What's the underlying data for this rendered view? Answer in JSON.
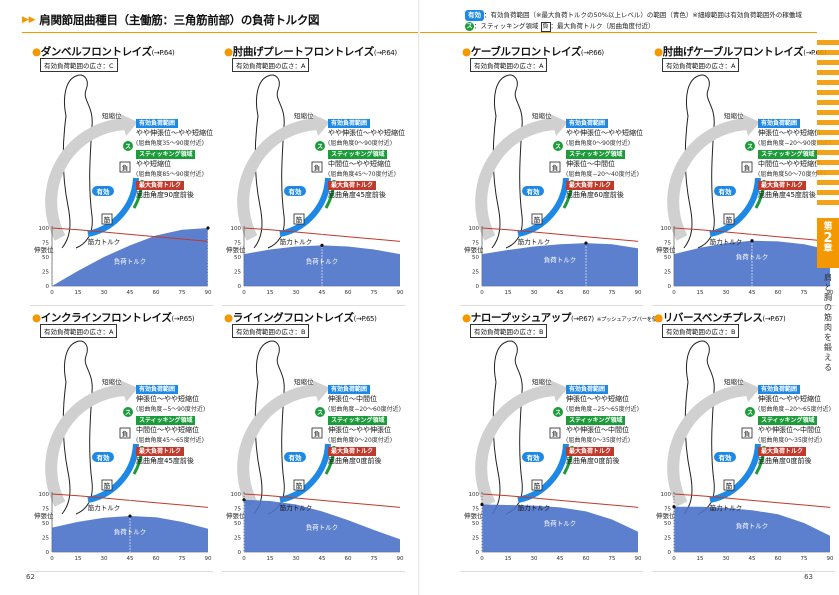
{
  "header": {
    "title": "肩関節屈曲種目（主働筋：三角筋前部）の負荷トルク図"
  },
  "legend": {
    "line1_tag": "有効",
    "line1_text": "：有効負荷範囲（※最大負荷トルクの50%以上レベル）の範囲（青色）※細線範囲は有効負荷範囲外の稼働域",
    "line2_s": "ス",
    "line2_text": "：スティッキング領域",
    "line2_box": "負",
    "line2_text2": "：最大負荷トルク（屈曲角度付近）"
  },
  "colors": {
    "accent": "#f39800",
    "blue": "#1e88e5",
    "green": "#1b9b3a",
    "red": "#c0392b",
    "torque_fill": "#4a72c8"
  },
  "common": {
    "long_pos": "短縮位",
    "stretch_pos": "伸張位",
    "muscle": "筋",
    "load": "負",
    "effective": "有効",
    "sticking": "ス",
    "lab_effective": "有効負荷範囲",
    "lab_sticking": "スティッキング領域",
    "lab_max": "最大負荷トルク",
    "muscle_torque": "筋力トルク",
    "load_torque": "負荷トルク"
  },
  "left_page": {
    "page_number": "62",
    "axis_note": "(伸張位) ←肩関節屈曲角度（度）→ (短縮位)",
    "bottom_top": "ボトム ⟷ トップ",
    "y_axis_label": "筋トルク・負荷トルク(%)",
    "panels": [
      {
        "title": "ダンベルフロントレイズ",
        "ref": "(→P.64)",
        "range": "有効負荷範囲の広さ：C",
        "effective": "やや伸張位〜やや短縮位",
        "effective_sub": "(屈曲角度35〜90度付近)",
        "sticking": "やや短縮位",
        "sticking_sub": "(屈曲角度85〜90度付近)",
        "max": "屈曲角度90度前後"
      },
      {
        "title": "肘曲げプレートフロントレイズ",
        "ref": "(→P.64)",
        "range": "有効負荷範囲の広さ：A",
        "effective": "やや伸張位〜やや短縮位",
        "effective_sub": "(屈曲角度0〜90度付近)",
        "sticking": "中間位〜やや短縮位",
        "sticking_sub": "(屈曲角度45〜70度付近)",
        "max": "屈曲角度45度前後"
      },
      {
        "title": "インクラインフロントレイズ",
        "ref": "(→P.65)",
        "range": "有効負荷範囲の広さ：A",
        "effective": "伸張位〜やや短縮位",
        "effective_sub": "(屈曲角度−5〜90度付近)",
        "sticking": "中間位〜やや短縮位",
        "sticking_sub": "(屈曲角度45〜65度付近)",
        "max": "屈曲角度45度前後"
      },
      {
        "title": "ライイングフロントレイズ",
        "ref": "(→P.65)",
        "range": "有効負荷範囲の広さ：B",
        "effective": "伸張位〜中間位",
        "effective_sub": "(屈曲角度−20〜60度付近)",
        "sticking": "伸張位〜やや伸張位",
        "sticking_sub": "(屈曲角度0〜20度付近)",
        "max": "屈曲角度0度前後"
      }
    ]
  },
  "right_page": {
    "page_number": "63",
    "chapter_label": "第",
    "chapter_num": "2",
    "chapter_suffix": "章",
    "side_text": "肩と胸の筋肉を鍛える",
    "panels": [
      {
        "title": "ケーブルフロントレイズ",
        "ref": "(→P.66)",
        "range": "有効負荷範囲の広さ：A",
        "effective": "やや伸張位〜やや短縮位",
        "effective_sub": "(屈曲角度0〜90度付近)",
        "sticking": "伸張位〜中間位",
        "sticking_sub": "(屈曲角度−20〜40度付近)",
        "max": "屈曲角度60度前後"
      },
      {
        "title": "肘曲げケーブルフロントレイズ",
        "ref": "(→P.66)",
        "range": "有効負荷範囲の広さ：A",
        "effective": "伸張位〜やや短縮位",
        "effective_sub": "(屈曲角度−20〜90度付近)",
        "sticking": "中間位〜やや短縮位",
        "sticking_sub": "(屈曲角度50〜70度付近)",
        "max": "屈曲角度45度前後"
      },
      {
        "title": "ナロープッシュアップ",
        "ref": "(→P.67)",
        "subnote": "※プッシュアップバーを使用",
        "range": "有効負荷範囲の広さ：B",
        "effective": "伸張位〜やや短縮位",
        "effective_sub": "(屈曲角度−25〜65度付近)",
        "sticking": "やや伸張位〜中間位",
        "sticking_sub": "(屈曲角度0〜35度付近)",
        "max": "屈曲角度0度前後"
      },
      {
        "title": "リバースベンチプレス",
        "ref": "(→P.67)",
        "range": "有効負荷範囲の広さ：B",
        "effective": "伸張位〜やや短縮位",
        "effective_sub": "(屈曲角度−20〜65度付近)",
        "sticking": "やや伸張位〜中間位",
        "sticking_sub": "(屈曲角度0〜35度付近)",
        "max": "屈曲角度0度前後"
      }
    ]
  },
  "chart_data": [
    {
      "type": "line",
      "panel": "ダンベルフロントレイズ",
      "x": [
        0,
        15,
        30,
        45,
        60,
        75,
        90
      ],
      "series": [
        {
          "name": "筋力トルク",
          "values": [
            100,
            97,
            93,
            89,
            85,
            81,
            77
          ]
        },
        {
          "name": "負荷トルク",
          "values": [
            0,
            26,
            50,
            70,
            87,
            97,
            100
          ]
        }
      ],
      "ylim": [
        0,
        100
      ],
      "yticks": [
        0,
        25,
        50,
        75,
        100
      ],
      "max_load_x": 90
    },
    {
      "type": "line",
      "panel": "肘曲げプレートフロントレイズ",
      "x": [
        0,
        15,
        30,
        45,
        60,
        75,
        90
      ],
      "series": [
        {
          "name": "筋力トルク",
          "values": [
            100,
            97,
            93,
            89,
            85,
            81,
            77
          ]
        },
        {
          "name": "負荷トルク",
          "values": [
            55,
            63,
            68,
            70,
            68,
            63,
            55
          ]
        }
      ],
      "ylim": [
        0,
        100
      ],
      "max_load_x": 45
    },
    {
      "type": "line",
      "panel": "ケーブルフロントレイズ",
      "x": [
        0,
        15,
        30,
        45,
        60,
        75,
        90
      ],
      "series": [
        {
          "name": "筋力トルク",
          "values": [
            100,
            97,
            93,
            89,
            85,
            81,
            77
          ]
        },
        {
          "name": "負荷トルク",
          "values": [
            55,
            62,
            68,
            72,
            74,
            72,
            65
          ]
        }
      ],
      "ylim": [
        0,
        100
      ],
      "max_load_x": 60
    },
    {
      "type": "line",
      "panel": "肘曲げケーブルフロントレイズ",
      "x": [
        0,
        15,
        30,
        45,
        60,
        75,
        90
      ],
      "series": [
        {
          "name": "筋力トルク",
          "values": [
            100,
            97,
            93,
            89,
            85,
            81,
            77
          ]
        },
        {
          "name": "負荷トルク",
          "values": [
            55,
            66,
            74,
            78,
            77,
            72,
            62
          ]
        }
      ],
      "ylim": [
        0,
        100
      ],
      "max_load_x": 45
    },
    {
      "type": "line",
      "panel": "インクラインフロントレイズ",
      "x": [
        0,
        15,
        30,
        45,
        60,
        75,
        90
      ],
      "series": [
        {
          "name": "筋力トルク",
          "values": [
            100,
            97,
            93,
            89,
            85,
            81,
            77
          ]
        },
        {
          "name": "負荷トルク",
          "values": [
            42,
            52,
            59,
            62,
            60,
            52,
            40
          ]
        }
      ],
      "ylim": [
        0,
        100
      ],
      "max_load_x": 45
    },
    {
      "type": "line",
      "panel": "ライイングフロントレイズ",
      "x": [
        0,
        15,
        30,
        45,
        60,
        75,
        90
      ],
      "series": [
        {
          "name": "筋力トルク",
          "values": [
            100,
            97,
            93,
            89,
            85,
            81,
            77
          ]
        },
        {
          "name": "負荷トルク",
          "values": [
            90,
            88,
            82,
            70,
            55,
            38,
            22
          ]
        }
      ],
      "ylim": [
        0,
        100
      ],
      "max_load_x": 0
    },
    {
      "type": "line",
      "panel": "ナロープッシュアップ",
      "x": [
        0,
        15,
        30,
        45,
        60,
        75,
        90
      ],
      "series": [
        {
          "name": "筋力トルク",
          "values": [
            100,
            97,
            93,
            89,
            85,
            81,
            77
          ]
        },
        {
          "name": "負荷トルク",
          "values": [
            82,
            81,
            80,
            77,
            70,
            56,
            35
          ]
        }
      ],
      "ylim": [
        0,
        100
      ],
      "max_load_x": 0
    },
    {
      "type": "line",
      "panel": "リバースベンチプレス",
      "x": [
        0,
        15,
        30,
        45,
        60,
        75,
        90
      ],
      "series": [
        {
          "name": "筋力トルク",
          "values": [
            100,
            97,
            93,
            89,
            85,
            81,
            77
          ]
        },
        {
          "name": "負荷トルク",
          "values": [
            78,
            78,
            76,
            72,
            65,
            50,
            28
          ]
        }
      ],
      "ylim": [
        0,
        100
      ],
      "max_load_x": 0
    }
  ]
}
